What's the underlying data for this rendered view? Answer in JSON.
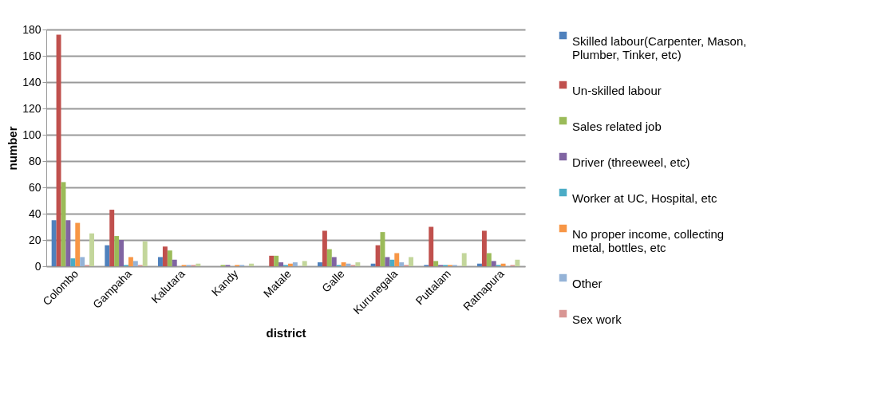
{
  "chart_data": {
    "type": "bar",
    "xlabel": "district",
    "ylabel": "number",
    "categories": [
      "Colombo",
      "Gampaha",
      "Kalutara",
      "Kandy",
      "Matale",
      "Galle",
      "Kurunegala",
      "Puttalam",
      "Ratnapura"
    ],
    "series": [
      {
        "name": "Skilled labour(Carpenter, Mason, Plumber, Tinker, etc)",
        "color": "#4f81bd",
        "values": [
          35,
          16,
          7,
          0,
          0,
          3,
          2,
          1,
          2
        ]
      },
      {
        "name": "Un-skilled labour",
        "color": "#c0504d",
        "values": [
          176,
          43,
          15,
          0,
          8,
          27,
          16,
          30,
          27
        ]
      },
      {
        "name": "Sales related job",
        "color": "#9bbb59",
        "values": [
          64,
          23,
          12,
          1,
          8,
          13,
          26,
          4,
          10
        ]
      },
      {
        "name": "Driver (threeweel, etc)",
        "color": "#8064a2",
        "values": [
          35,
          20,
          5,
          1,
          3,
          7,
          7,
          1,
          4
        ]
      },
      {
        "name": "Worker at UC, Hospital, etc",
        "color": "#4bacc6",
        "values": [
          6,
          1,
          0,
          0,
          1,
          1,
          5,
          1,
          1
        ]
      },
      {
        "name": "No proper income, collecting metal, bottles, etc",
        "color": "#f79646",
        "values": [
          33,
          7,
          1,
          1,
          2,
          3,
          10,
          1,
          2
        ]
      },
      {
        "name": "Other",
        "color": "#95b3d7",
        "values": [
          7,
          4,
          1,
          1,
          3,
          2,
          3,
          1,
          0
        ]
      },
      {
        "name": "Sex work",
        "color": "#d99694",
        "values": [
          1,
          1,
          1,
          0,
          0,
          1,
          1,
          0,
          1
        ]
      },
      {
        "color": "#c3d69b",
        "values": [
          25,
          19,
          2,
          2,
          4,
          3,
          7,
          10,
          5
        ]
      }
    ],
    "ylim": [
      0,
      180
    ],
    "yticks": [
      0,
      20,
      40,
      60,
      80,
      100,
      120,
      140,
      160,
      180
    ],
    "grid": "y",
    "legend": "right"
  }
}
